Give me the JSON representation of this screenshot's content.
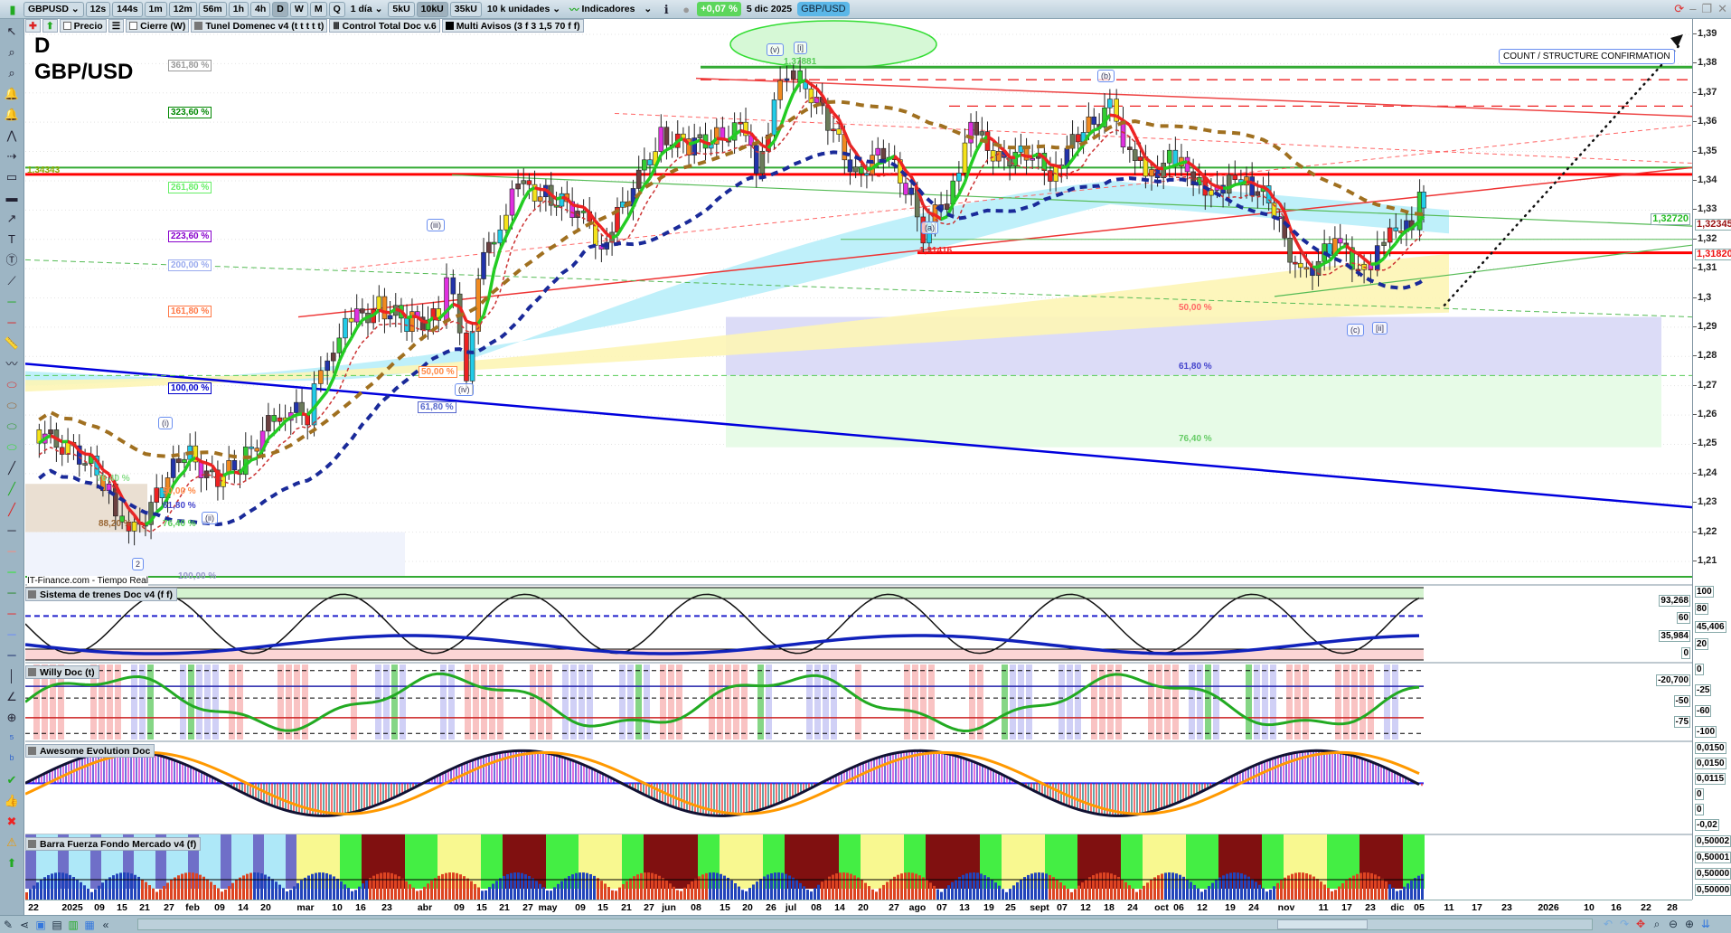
{
  "toolbar": {
    "symbol": "GBPUSD",
    "timeframes": [
      "12s",
      "144s",
      "1m",
      "12m",
      "56m",
      "1h",
      "4h",
      "D",
      "W",
      "M",
      "Q"
    ],
    "selected_timeframe": "D",
    "period": "1 día",
    "units_buttons": [
      "5kU",
      "10kU",
      "35kU"
    ],
    "selected_units": "10kU",
    "units_select": "10 k unidades",
    "indicators": "Indicadores",
    "change": "+0,07 %",
    "date": "5 dic 2025",
    "pair_badge": "GBP/USD"
  },
  "legend": {
    "items": [
      "Precio",
      "Cierre (W)",
      "Tunel Domenec v4 (t t t t t)",
      "Control Total Doc v.6",
      "Multi Avisos (3 f 3 1,5 70 f f)"
    ]
  },
  "chart": {
    "timeframe_label": "D",
    "instrument": "GBP/USD",
    "source": "IT-Finance.com - Tiempo Real",
    "note": "COUNT / STRUCTURE CONFIRMATION",
    "price_marker_left": "1,34343",
    "high_label": "1,37881",
    "low_label": "1,31416",
    "fib_left": [
      "361,80 %",
      "323,60 %",
      "261,80 %",
      "223,60 %",
      "200,00 %",
      "161,80 %",
      "100,00 %",
      "61,80 %",
      "50,00 %"
    ],
    "fib_small": [
      "50,00 %",
      "61,80 %",
      "76,40 %",
      "88,20 %",
      "100,00 %",
      "76,40 %"
    ],
    "fib_right": [
      "50,00 %",
      "61,80 %",
      "76,40 %"
    ],
    "waves": [
      "(v)",
      "[i]",
      "(b)",
      "(a)",
      "(c)",
      "[ii]",
      "(iii)",
      "(iv)",
      "(i)",
      "(ii)",
      "2"
    ]
  },
  "price_axis": {
    "ticks": [
      "1,39",
      "1,38",
      "1,37",
      "1,36",
      "1,35",
      "1,34",
      "1,33",
      "1,32",
      "1,31",
      "1,3",
      "1,29",
      "1,28",
      "1,27",
      "1,26",
      "1,25",
      "1,24",
      "1,23",
      "1,22",
      "1,21"
    ],
    "labels": [
      {
        "text": "1,32720",
        "color": "#22bb22"
      },
      {
        "text": "1,32345",
        "color": "#991111"
      },
      {
        "text": "1,31820",
        "color": "#ee1111"
      }
    ]
  },
  "panels": [
    {
      "title": "Sistema de trenes Doc v4 (f f)",
      "axis": [
        "100",
        "93,268",
        "80",
        "60",
        "45,406",
        "35,984",
        "20",
        "0"
      ]
    },
    {
      "title": "Willy Doc (t)",
      "axis": [
        "0",
        "-20,700",
        "-25",
        "-50",
        "-60",
        "-75",
        "-100"
      ]
    },
    {
      "title": "Awesome Evolution Doc",
      "axis": [
        "0,0150",
        "0,0150",
        "0,0115",
        "0",
        "0",
        "-0,02"
      ]
    },
    {
      "title": "Barra Fuerza Fondo Mercado v4 (f)",
      "axis": [
        "0,50002",
        "0,50001",
        "0,50000",
        "0,50000"
      ]
    }
  ],
  "date_axis": [
    "22",
    "2025",
    "09",
    "15",
    "21",
    "27",
    "feb",
    "09",
    "14",
    "20",
    "mar",
    "10",
    "16",
    "23",
    "abr",
    "09",
    "15",
    "21",
    "27",
    "may",
    "09",
    "15",
    "21",
    "27",
    "jun",
    "08",
    "15",
    "20",
    "26",
    "jul",
    "08",
    "14",
    "20",
    "27",
    "ago",
    "07",
    "13",
    "19",
    "25",
    "sept",
    "07",
    "12",
    "18",
    "24",
    "oct",
    "06",
    "12",
    "19",
    "24",
    "nov",
    "11",
    "17",
    "23",
    "dic",
    "05",
    "11",
    "17",
    "23",
    "2026",
    "10",
    "16",
    "22",
    "28"
  ],
  "colors": {
    "up_ma": "#22cc22",
    "down_ma": "#ee2222",
    "support": "#ff0000",
    "resistance": "#33aa33",
    "trend": "#0000dd"
  },
  "chart_data": {
    "type": "candlestick",
    "instrument": "GBP/USD",
    "timeframe": "D",
    "ylim": [
      1.205,
      1.395
    ],
    "approx_closes": [
      [
        "2024-12-20",
        1.255
      ],
      [
        "2025-01-02",
        1.245
      ],
      [
        "2025-01-08",
        1.235
      ],
      [
        "2025-01-13",
        1.217
      ],
      [
        "2025-01-20",
        1.232
      ],
      [
        "2025-01-27",
        1.248
      ],
      [
        "2025-02-03",
        1.238
      ],
      [
        "2025-02-10",
        1.243
      ],
      [
        "2025-02-20",
        1.262
      ],
      [
        "2025-02-27",
        1.26
      ],
      [
        "2025-03-04",
        1.282
      ],
      [
        "2025-03-10",
        1.292
      ],
      [
        "2025-03-17",
        1.297
      ],
      [
        "2025-03-24",
        1.292
      ],
      [
        "2025-04-01",
        1.293
      ],
      [
        "2025-04-03",
        1.31
      ],
      [
        "2025-04-08",
        1.275
      ],
      [
        "2025-04-11",
        1.308
      ],
      [
        "2025-04-15",
        1.322
      ],
      [
        "2025-04-21",
        1.338
      ],
      [
        "2025-04-28",
        1.335
      ],
      [
        "2025-05-06",
        1.33
      ],
      [
        "2025-05-12",
        1.318
      ],
      [
        "2025-05-20",
        1.338
      ],
      [
        "2025-05-27",
        1.355
      ],
      [
        "2025-06-03",
        1.352
      ],
      [
        "2025-06-10",
        1.355
      ],
      [
        "2025-06-16",
        1.358
      ],
      [
        "2025-06-20",
        1.345
      ],
      [
        "2025-06-26",
        1.372
      ],
      [
        "2025-07-01",
        1.376
      ],
      [
        "2025-07-08",
        1.36
      ],
      [
        "2025-07-15",
        1.342
      ],
      [
        "2025-07-22",
        1.35
      ],
      [
        "2025-07-29",
        1.335
      ],
      [
        "2025-08-01",
        1.322
      ],
      [
        "2025-08-07",
        1.335
      ],
      [
        "2025-08-13",
        1.357
      ],
      [
        "2025-08-20",
        1.348
      ],
      [
        "2025-08-27",
        1.349
      ],
      [
        "2025-09-02",
        1.343
      ],
      [
        "2025-09-09",
        1.355
      ],
      [
        "2025-09-17",
        1.365
      ],
      [
        "2025-09-22",
        1.35
      ],
      [
        "2025-09-26",
        1.342
      ],
      [
        "2025-10-02",
        1.347
      ],
      [
        "2025-10-08",
        1.342
      ],
      [
        "2025-10-14",
        1.335
      ],
      [
        "2025-10-20",
        1.342
      ],
      [
        "2025-10-27",
        1.333
      ],
      [
        "2025-11-04",
        1.307
      ],
      [
        "2025-11-10",
        1.315
      ],
      [
        "2025-11-14",
        1.318
      ],
      [
        "2025-11-20",
        1.308
      ],
      [
        "2025-11-25",
        1.318
      ],
      [
        "2025-11-28",
        1.326
      ],
      [
        "2025-12-02",
        1.322
      ],
      [
        "2025-12-04",
        1.334
      ],
      [
        "2025-12-05",
        1.333
      ]
    ],
    "levels": [
      {
        "label": "1,37881",
        "value": 1.37881
      },
      {
        "label": "1,34343",
        "value": 1.34343
      },
      {
        "label": "1,31416",
        "value": 1.31416
      },
      {
        "label": "1,32720",
        "value": 1.3272
      },
      {
        "label": "1,32345",
        "value": 1.32345
      },
      {
        "label": "1,31820",
        "value": 1.3182
      }
    ]
  }
}
